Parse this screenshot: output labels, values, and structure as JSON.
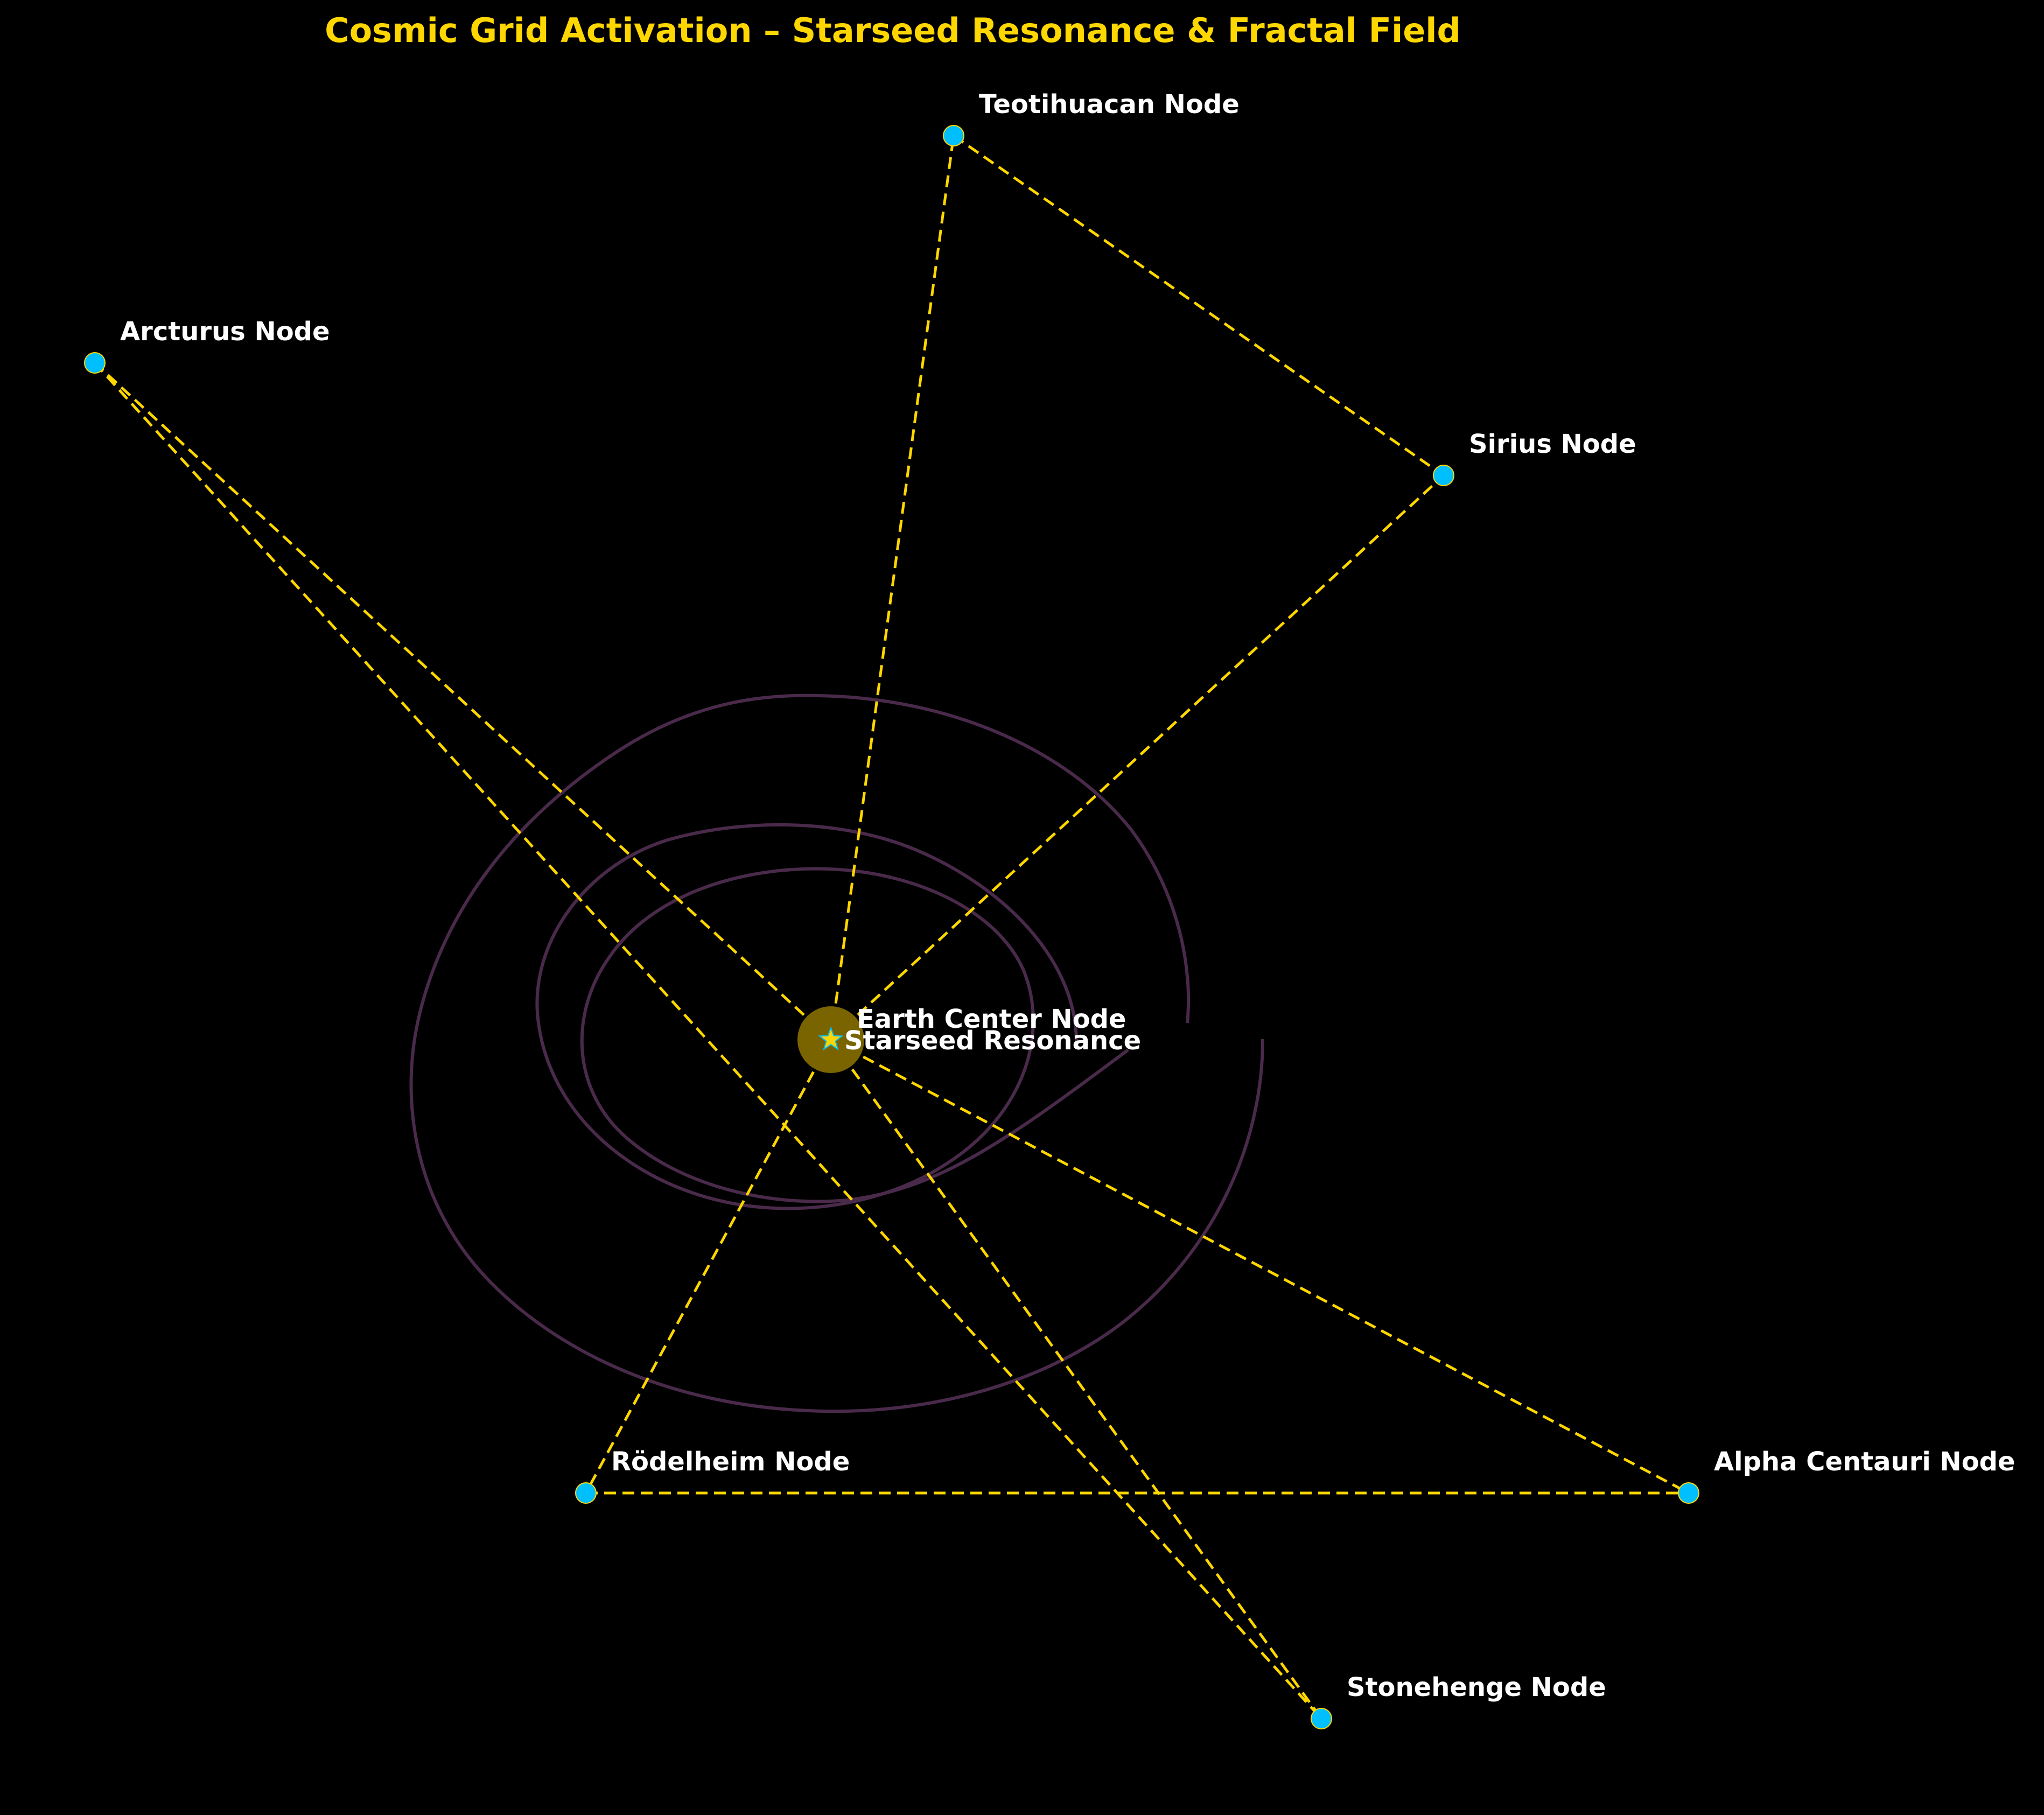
{
  "title": "Cosmic Grid Activation – Starseed Resonance & Fractal Field",
  "colors": {
    "background": "#000000",
    "title": "#FFD700",
    "edge": "#FFD700",
    "node_fill": "#00BFFF",
    "label": "#FFFFFF",
    "center_glow": "#7A6400",
    "spiral": "#4A2A4A"
  },
  "center": {
    "name": "Earth Center Node",
    "annotation": "Starseed Resonance",
    "marker": "star-icon"
  },
  "nodes": [
    {
      "id": "teotihuacan",
      "label": "Teotihuacan Node"
    },
    {
      "id": "arcturus",
      "label": "Arcturus Node"
    },
    {
      "id": "sirius",
      "label": "Sirius Node"
    },
    {
      "id": "rodelheim",
      "label": "Rödelheim Node"
    },
    {
      "id": "alpha_centauri",
      "label": "Alpha Centauri Node"
    },
    {
      "id": "stonehenge",
      "label": "Stonehenge Node"
    }
  ],
  "edges": [
    [
      "center",
      "teotihuacan"
    ],
    [
      "teotihuacan",
      "sirius"
    ],
    [
      "center",
      "sirius"
    ],
    [
      "center",
      "arcturus"
    ],
    [
      "arcturus",
      "stonehenge"
    ],
    [
      "center",
      "stonehenge"
    ],
    [
      "center",
      "rodelheim"
    ],
    [
      "center",
      "alpha_centauri"
    ],
    [
      "rodelheim",
      "alpha_centauri"
    ]
  ]
}
